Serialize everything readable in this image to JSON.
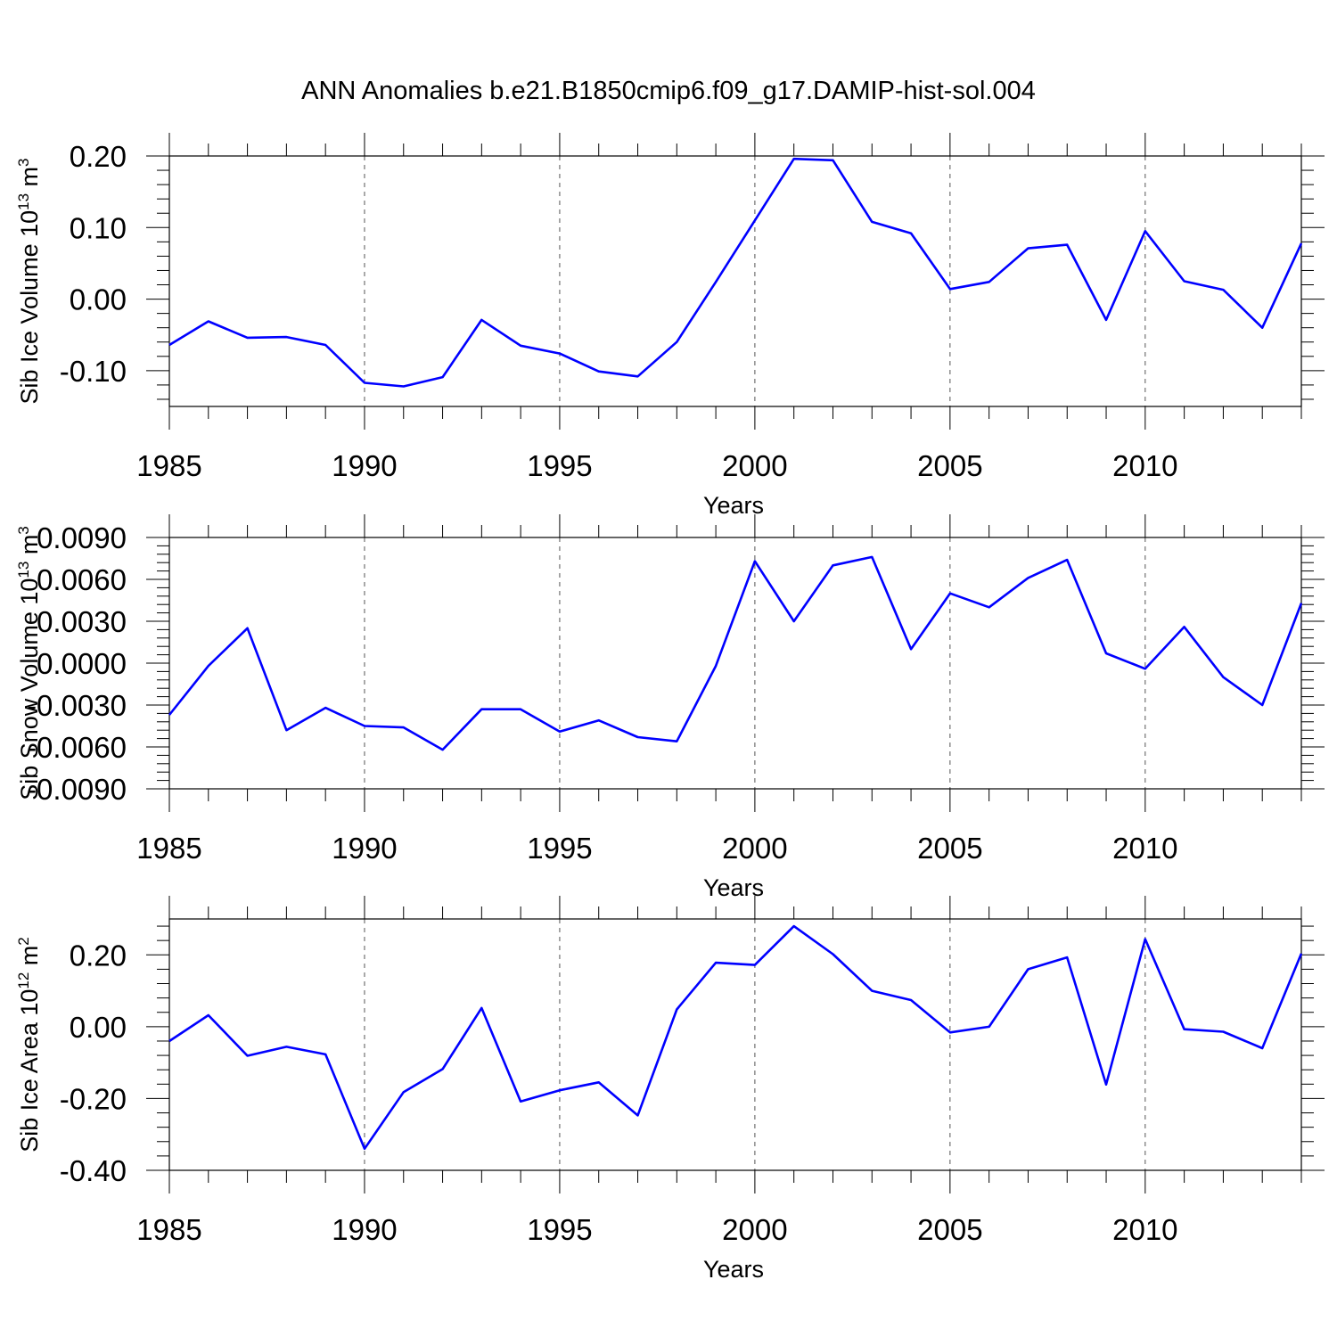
{
  "figure": {
    "title": "ANN Anomalies b.e21.B1850cmip6.f09_g17.DAMIP-hist-sol.004"
  },
  "colors": {
    "series": "#0000ff",
    "axes": "#000000",
    "grid": "#555555"
  },
  "chart_data": [
    {
      "type": "line",
      "title": "",
      "xlabel": "Years",
      "ylabel": "Sib Ice Volume 10",
      "ylabel_sup": "13",
      "ylabel_unit": " m",
      "ylabel_unit_sup": "3",
      "xlim": [
        1985,
        2014
      ],
      "ylim": [
        -0.15,
        0.2
      ],
      "xticks": [
        1985,
        1990,
        1995,
        2000,
        2005,
        2010
      ],
      "xtick_labels": [
        "1985",
        "1990",
        "1995",
        "2000",
        "2005",
        "2010"
      ],
      "yticks": [
        -0.1,
        0.0,
        0.1,
        0.2
      ],
      "ytick_labels": [
        "-0.10",
        "0.00",
        "0.10",
        "0.20"
      ],
      "grid_x": true,
      "x": [
        1985,
        1986,
        1987,
        1988,
        1989,
        1990,
        1991,
        1992,
        1993,
        1994,
        1995,
        1996,
        1997,
        1998,
        1999,
        2000,
        2001,
        2002,
        2003,
        2004,
        2005,
        2006,
        2007,
        2008,
        2009,
        2010,
        2011,
        2012,
        2013,
        2014
      ],
      "values": [
        -0.064,
        -0.031,
        -0.054,
        -0.053,
        -0.064,
        -0.117,
        -0.122,
        -0.109,
        -0.029,
        -0.065,
        -0.076,
        -0.101,
        -0.108,
        -0.06,
        0.024,
        0.11,
        0.196,
        0.194,
        0.108,
        0.092,
        0.014,
        0.024,
        0.071,
        0.076,
        -0.029,
        0.095,
        0.025,
        0.013,
        -0.04,
        0.078
      ]
    },
    {
      "type": "line",
      "title": "",
      "xlabel": "Years",
      "ylabel": "Sib Snow Volume 10",
      "ylabel_sup": "13",
      "ylabel_unit": " m",
      "ylabel_unit_sup": "3",
      "xlim": [
        1985,
        2014
      ],
      "ylim": [
        -0.009,
        0.009
      ],
      "xticks": [
        1985,
        1990,
        1995,
        2000,
        2005,
        2010
      ],
      "xtick_labels": [
        "1985",
        "1990",
        "1995",
        "2000",
        "2005",
        "2010"
      ],
      "yticks": [
        -0.009,
        -0.006,
        -0.003,
        0.0,
        0.003,
        0.006,
        0.009
      ],
      "ytick_labels": [
        "-0.0090",
        "-0.0060",
        "-0.0030",
        "0.0000",
        "0.0030",
        "0.0060",
        "0.0090"
      ],
      "grid_x": true,
      "x": [
        1985,
        1986,
        1987,
        1988,
        1989,
        1990,
        1991,
        1992,
        1993,
        1994,
        1995,
        1996,
        1997,
        1998,
        1999,
        2000,
        2001,
        2002,
        2003,
        2004,
        2005,
        2006,
        2007,
        2008,
        2009,
        2010,
        2011,
        2012,
        2013,
        2014
      ],
      "values": [
        -0.0037,
        -0.0002,
        0.0025,
        -0.0048,
        -0.0032,
        -0.0045,
        -0.0046,
        -0.0062,
        -0.0033,
        -0.0033,
        -0.0049,
        -0.0041,
        -0.0053,
        -0.0056,
        -0.0002,
        0.0073,
        0.003,
        0.007,
        0.0076,
        0.001,
        0.005,
        0.004,
        0.0061,
        0.0074,
        0.0007,
        -0.0004,
        0.0026,
        -0.001,
        -0.003,
        0.0043
      ]
    },
    {
      "type": "line",
      "title": "",
      "xlabel": "Years",
      "ylabel": "Sib Ice Area 10",
      "ylabel_sup": "12",
      "ylabel_unit": " m",
      "ylabel_unit_sup": "2",
      "xlim": [
        1985,
        2014
      ],
      "ylim": [
        -0.4,
        0.3
      ],
      "xticks": [
        1985,
        1990,
        1995,
        2000,
        2005,
        2010
      ],
      "xtick_labels": [
        "1985",
        "1990",
        "1995",
        "2000",
        "2005",
        "2010"
      ],
      "yticks": [
        -0.4,
        -0.2,
        0.0,
        0.2
      ],
      "ytick_labels": [
        "-0.40",
        "-0.20",
        "0.00",
        "0.20"
      ],
      "grid_x": true,
      "x": [
        1985,
        1986,
        1987,
        1988,
        1989,
        1990,
        1991,
        1992,
        1993,
        1994,
        1995,
        1996,
        1997,
        1998,
        1999,
        2000,
        2001,
        2002,
        2003,
        2004,
        2005,
        2006,
        2007,
        2008,
        2009,
        2010,
        2011,
        2012,
        2013,
        2014
      ],
      "values": [
        -0.04,
        0.032,
        -0.081,
        -0.056,
        -0.077,
        -0.34,
        -0.182,
        -0.118,
        0.052,
        -0.208,
        -0.177,
        -0.155,
        -0.247,
        0.048,
        0.178,
        0.172,
        0.28,
        0.202,
        0.1,
        0.074,
        -0.016,
        0.0,
        0.16,
        0.193,
        -0.161,
        0.244,
        -0.007,
        -0.014,
        -0.06,
        0.204
      ]
    }
  ]
}
